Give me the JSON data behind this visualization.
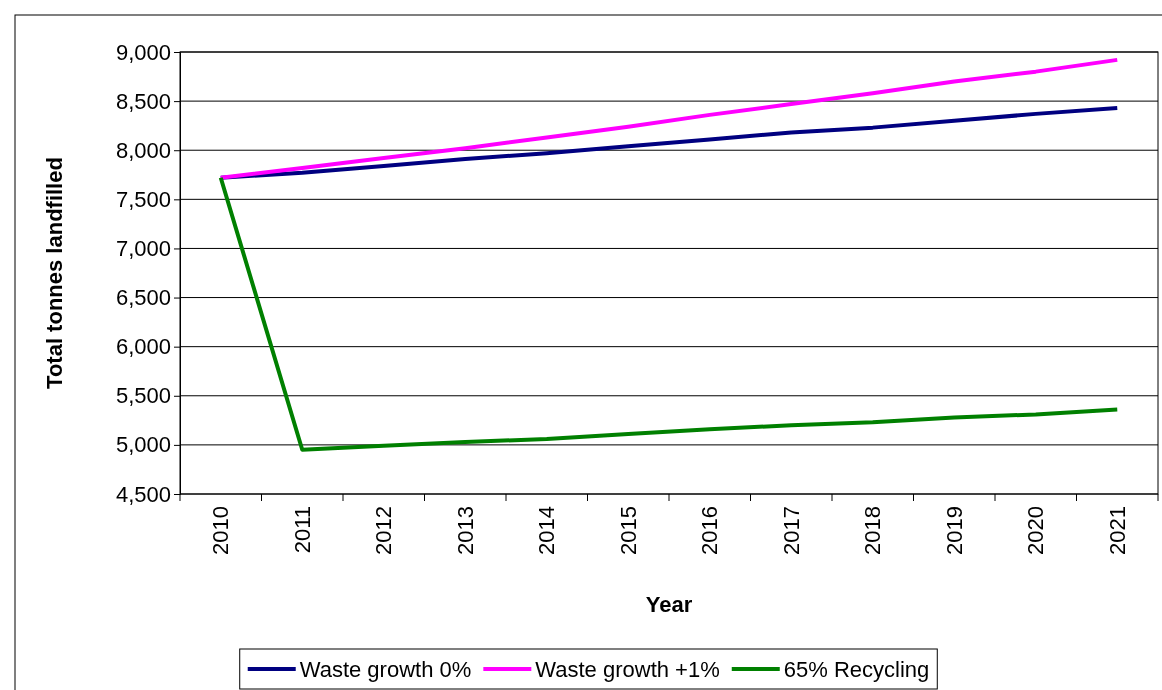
{
  "chart_data": {
    "type": "line",
    "xlabel": "Year",
    "ylabel": "Total tonnes landfilled",
    "categories": [
      "2010",
      "2011",
      "2012",
      "2013",
      "2014",
      "2015",
      "2016",
      "2017",
      "2018",
      "2019",
      "2020",
      "2021"
    ],
    "series": [
      {
        "name": "Waste growth 0%",
        "color": "#000080",
        "values": [
          7720,
          7770,
          7840,
          7910,
          7970,
          8040,
          8110,
          8180,
          8230,
          8300,
          8370,
          8430
        ]
      },
      {
        "name": "Waste growth +1%",
        "color": "#ff00ff",
        "values": [
          7720,
          7820,
          7920,
          8020,
          8130,
          8240,
          8360,
          8470,
          8580,
          8700,
          8800,
          8920
        ]
      },
      {
        "name": "65% Recycling",
        "color": "#008000",
        "values": [
          7720,
          4950,
          4990,
          5030,
          5060,
          5110,
          5160,
          5200,
          5230,
          5280,
          5310,
          5360
        ]
      }
    ],
    "ylim": [
      4500,
      9000
    ],
    "yticks": [
      {
        "value": 4500,
        "label": "4,500"
      },
      {
        "value": 5000,
        "label": "5,000"
      },
      {
        "value": 5500,
        "label": "5,500"
      },
      {
        "value": 6000,
        "label": "6,000"
      },
      {
        "value": 6500,
        "label": "6,500"
      },
      {
        "value": 7000,
        "label": "7,000"
      },
      {
        "value": 7500,
        "label": "7,500"
      },
      {
        "value": 8000,
        "label": "8,000"
      },
      {
        "value": 8500,
        "label": "8,500"
      },
      {
        "value": 9000,
        "label": "9,000"
      }
    ],
    "grid": "y",
    "legend": "bottom",
    "marker": "none",
    "line_style": "solid"
  }
}
